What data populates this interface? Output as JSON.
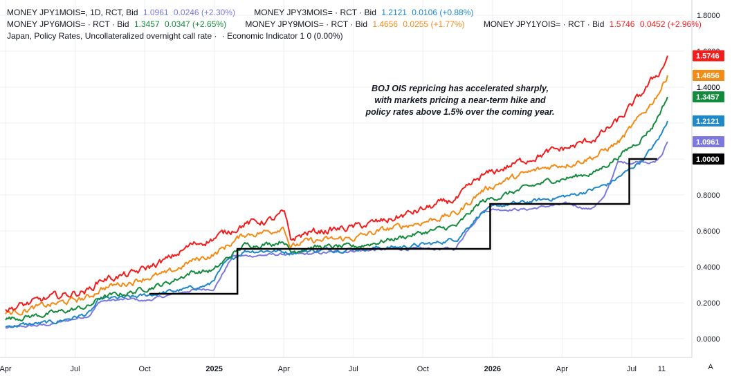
{
  "legend": {
    "row1": [
      {
        "name": "MONEY JPY1MOIS=, 1D, RCT, Bid",
        "value": "1.0961",
        "change": "0.0246 (+2.30%)",
        "color": "#7b79e0"
      },
      {
        "name": "MONEY JPY3MOIS= · RCT · Bid",
        "value": "1.2121",
        "change": "0.0106 (+0.88%)",
        "color": "#1e88c8"
      }
    ],
    "row2": [
      {
        "name": "MONEY JPY6MOIS= · RCT · Bid",
        "value": "1.3457",
        "change": "0.0347 (+2.65%)",
        "color": "#138a3c"
      },
      {
        "name": "MONEY JPY9MOIS= · RCT · Bid",
        "value": "1.4656",
        "change": "0.0255 (+1.77%)",
        "color": "#f28c17"
      },
      {
        "name": "MONEY JPY1YOIS= · RCT · Bid",
        "value": "1.5746",
        "change": "0.0452 (+2.96%)",
        "color": "#f21e1e"
      }
    ],
    "row3": {
      "name": "Japan, Policy Rates, Uncollateralized overnight call rate ·",
      "extra": "· Economic Indicator 1 0 (0.00%)"
    }
  },
  "annotation": {
    "line1": "BOJ OIS repricing has accelerated sharply,",
    "line2": "with markets pricing a near-term hike and",
    "line3": "policy rates above 1.5% over the coming year."
  },
  "corner_label": "A",
  "chart_data": {
    "type": "line",
    "title": "",
    "xlabel": "",
    "ylabel": "",
    "ylim": [
      -0.08,
      1.9
    ],
    "y_ticks": [
      "0.0000",
      "0.2000",
      "0.4000",
      "0.6000",
      "0.8000",
      "1.0000",
      "1.2000",
      "1.4000",
      "1.6000",
      "1.8000"
    ],
    "x_ticks": [
      {
        "label": "Apr",
        "t": 0.0,
        "bold": false
      },
      {
        "label": "Jul",
        "t": 3.0,
        "bold": false
      },
      {
        "label": "Oct",
        "t": 6.0,
        "bold": false
      },
      {
        "label": "2025",
        "t": 9.0,
        "bold": true
      },
      {
        "label": "Apr",
        "t": 12.0,
        "bold": false
      },
      {
        "label": "Jul",
        "t": 15.0,
        "bold": false
      },
      {
        "label": "Oct",
        "t": 18.0,
        "bold": false
      },
      {
        "label": "2026",
        "t": 21.0,
        "bold": true
      },
      {
        "label": "Apr",
        "t": 24.0,
        "bold": false
      },
      {
        "label": "Jul",
        "t": 27.0,
        "bold": false
      },
      {
        "label": "11",
        "t": 28.3,
        "bold": false
      }
    ],
    "x_range": [
      0,
      29.3
    ],
    "grid": true,
    "series": [
      {
        "name": "MONEY JPY1MOIS=",
        "color": "#7b79e0",
        "noise": 0.005,
        "last_label": "1.0961",
        "points": [
          [
            0,
            0.06
          ],
          [
            2,
            0.08
          ],
          [
            3.6,
            0.13
          ],
          [
            4.1,
            0.21
          ],
          [
            5.5,
            0.22
          ],
          [
            6,
            0.21
          ],
          [
            7,
            0.24
          ],
          [
            8,
            0.27
          ],
          [
            9,
            0.28
          ],
          [
            9.8,
            0.46
          ],
          [
            10.3,
            0.46
          ],
          [
            12,
            0.47
          ],
          [
            13,
            0.47
          ],
          [
            15,
            0.49
          ],
          [
            17,
            0.5
          ],
          [
            18.8,
            0.5
          ],
          [
            19.4,
            0.5
          ],
          [
            20,
            0.62
          ],
          [
            20.6,
            0.71
          ],
          [
            21,
            0.72
          ],
          [
            21.5,
            0.72
          ],
          [
            22.5,
            0.72
          ],
          [
            23.5,
            0.74
          ],
          [
            24.3,
            0.75
          ],
          [
            25.2,
            0.72
          ],
          [
            25.8,
            0.78
          ],
          [
            26.4,
            0.98
          ],
          [
            27,
            0.98
          ],
          [
            27.5,
            0.99
          ],
          [
            28,
            0.98
          ],
          [
            28.3,
            1.02
          ],
          [
            28.55,
            1.0961
          ]
        ]
      },
      {
        "name": "MONEY JPY3MOIS=",
        "color": "#1e88c8",
        "noise": 0.008,
        "last_label": "1.2121",
        "points": [
          [
            0,
            0.07
          ],
          [
            2,
            0.09
          ],
          [
            3.6,
            0.14
          ],
          [
            4.1,
            0.22
          ],
          [
            5.5,
            0.23
          ],
          [
            6,
            0.24
          ],
          [
            7,
            0.26
          ],
          [
            8,
            0.28
          ],
          [
            8.8,
            0.3
          ],
          [
            9.5,
            0.42
          ],
          [
            10.3,
            0.49
          ],
          [
            11.5,
            0.49
          ],
          [
            12.3,
            0.48
          ],
          [
            13,
            0.49
          ],
          [
            15,
            0.5
          ],
          [
            17,
            0.51
          ],
          [
            18.5,
            0.53
          ],
          [
            19.5,
            0.56
          ],
          [
            20.5,
            0.7
          ],
          [
            21.3,
            0.74
          ],
          [
            22.5,
            0.76
          ],
          [
            23.5,
            0.78
          ],
          [
            24.5,
            0.8
          ],
          [
            25.3,
            0.83
          ],
          [
            26,
            0.86
          ],
          [
            26.8,
            0.93
          ],
          [
            27.5,
            1.0
          ],
          [
            28,
            1.08
          ],
          [
            28.3,
            1.14
          ],
          [
            28.55,
            1.2121
          ]
        ]
      },
      {
        "name": "MONEY JPY6MOIS=",
        "color": "#138a3c",
        "noise": 0.01,
        "last_label": "1.3457",
        "points": [
          [
            0,
            0.11
          ],
          [
            2,
            0.14
          ],
          [
            3.6,
            0.18
          ],
          [
            4.1,
            0.23
          ],
          [
            5.5,
            0.26
          ],
          [
            6,
            0.28
          ],
          [
            7,
            0.31
          ],
          [
            8,
            0.37
          ],
          [
            9,
            0.38
          ],
          [
            9.5,
            0.44
          ],
          [
            10.3,
            0.52
          ],
          [
            11.5,
            0.53
          ],
          [
            12,
            0.55
          ],
          [
            12.3,
            0.48
          ],
          [
            13,
            0.51
          ],
          [
            15,
            0.51
          ],
          [
            16.5,
            0.55
          ],
          [
            18,
            0.59
          ],
          [
            19.5,
            0.63
          ],
          [
            20.5,
            0.76
          ],
          [
            21.5,
            0.8
          ],
          [
            22.5,
            0.84
          ],
          [
            23.5,
            0.88
          ],
          [
            24.5,
            0.9
          ],
          [
            25.5,
            0.93
          ],
          [
            26.5,
            1.02
          ],
          [
            27.3,
            1.1
          ],
          [
            27.9,
            1.18
          ],
          [
            28.3,
            1.28
          ],
          [
            28.55,
            1.3457
          ]
        ]
      },
      {
        "name": "MONEY JPY9MOIS=",
        "color": "#f28c17",
        "noise": 0.012,
        "last_label": "1.4656",
        "points": [
          [
            0,
            0.14
          ],
          [
            2,
            0.19
          ],
          [
            3.6,
            0.23
          ],
          [
            4.1,
            0.28
          ],
          [
            5.5,
            0.32
          ],
          [
            6,
            0.34
          ],
          [
            7,
            0.36
          ],
          [
            8,
            0.43
          ],
          [
            9,
            0.47
          ],
          [
            10.3,
            0.58
          ],
          [
            11.5,
            0.6
          ],
          [
            12,
            0.63
          ],
          [
            12.3,
            0.51
          ],
          [
            13,
            0.54
          ],
          [
            15,
            0.56
          ],
          [
            16.5,
            0.61
          ],
          [
            18,
            0.65
          ],
          [
            19.5,
            0.7
          ],
          [
            20.5,
            0.82
          ],
          [
            21.5,
            0.88
          ],
          [
            22.5,
            0.92
          ],
          [
            23.5,
            0.96
          ],
          [
            24.5,
            0.98
          ],
          [
            25.5,
            1.02
          ],
          [
            26.5,
            1.1
          ],
          [
            27.3,
            1.22
          ],
          [
            27.9,
            1.32
          ],
          [
            28.3,
            1.4
          ],
          [
            28.55,
            1.4656
          ]
        ]
      },
      {
        "name": "MONEY JPY1YOIS=",
        "color": "#f21e1e",
        "noise": 0.014,
        "last_label": "1.5746",
        "points": [
          [
            0,
            0.16
          ],
          [
            2,
            0.23
          ],
          [
            3.6,
            0.27
          ],
          [
            4.1,
            0.33
          ],
          [
            5.5,
            0.36
          ],
          [
            6,
            0.39
          ],
          [
            7,
            0.44
          ],
          [
            8,
            0.52
          ],
          [
            9,
            0.56
          ],
          [
            10.3,
            0.64
          ],
          [
            11.5,
            0.66
          ],
          [
            12,
            0.7
          ],
          [
            12.3,
            0.55
          ],
          [
            13,
            0.59
          ],
          [
            15,
            0.62
          ],
          [
            16.5,
            0.66
          ],
          [
            18,
            0.72
          ],
          [
            19.5,
            0.78
          ],
          [
            20.5,
            0.9
          ],
          [
            21.5,
            0.95
          ],
          [
            22.5,
            1.0
          ],
          [
            23.5,
            1.04
          ],
          [
            24.5,
            1.07
          ],
          [
            25.5,
            1.12
          ],
          [
            26.5,
            1.22
          ],
          [
            27.3,
            1.34
          ],
          [
            27.9,
            1.44
          ],
          [
            28.3,
            1.5
          ],
          [
            28.55,
            1.5746
          ]
        ]
      }
    ],
    "policy_rate": {
      "name": "Japan, Policy Rates, Uncollateralized overnight call rate",
      "color": "#000000",
      "last_label": "1.0000",
      "steps": [
        [
          6.2,
          0.25
        ],
        [
          10.0,
          0.5
        ],
        [
          20.9,
          0.75
        ],
        [
          26.9,
          1.0
        ],
        [
          28.1,
          1.0
        ]
      ]
    },
    "extra_axis_labels": [
      "1.4000"
    ]
  }
}
